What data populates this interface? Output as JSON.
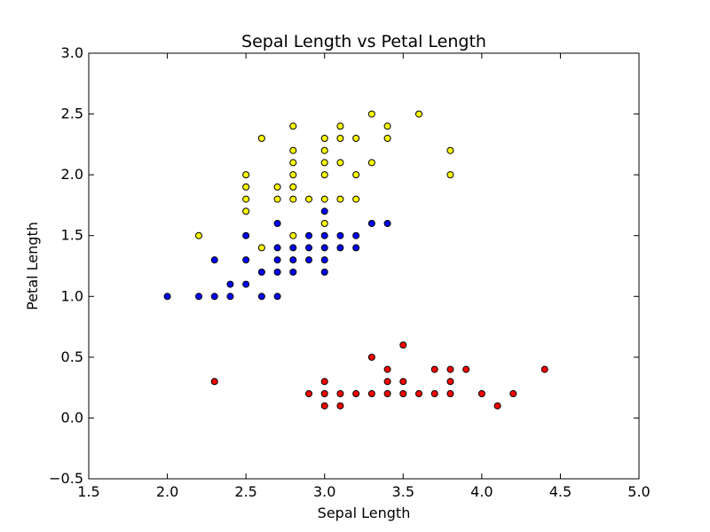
{
  "chart_data": {
    "type": "scatter",
    "title": "Sepal Length vs Petal Length",
    "xlabel": "Sepal Length",
    "ylabel": "Petal Length",
    "xlim": [
      1.5,
      5.0
    ],
    "ylim": [
      -0.5,
      3.0
    ],
    "xticks": [
      "1.5",
      "2.0",
      "2.5",
      "3.0",
      "3.5",
      "4.0",
      "4.5",
      "5.0"
    ],
    "yticks": [
      "−0.5",
      "0.0",
      "0.5",
      "1.0",
      "1.5",
      "2.0",
      "2.5",
      "3.0"
    ],
    "grid": false,
    "legend": "none",
    "series": [
      {
        "color": "#ff0000",
        "points": [
          [
            2.3,
            0.3
          ],
          [
            2.9,
            0.2
          ],
          [
            3.0,
            0.3
          ],
          [
            3.0,
            0.2
          ],
          [
            3.0,
            0.1
          ],
          [
            3.1,
            0.2
          ],
          [
            3.1,
            0.1
          ],
          [
            3.2,
            0.2
          ],
          [
            3.3,
            0.5
          ],
          [
            3.3,
            0.2
          ],
          [
            3.4,
            0.4
          ],
          [
            3.4,
            0.3
          ],
          [
            3.4,
            0.2
          ],
          [
            3.5,
            0.6
          ],
          [
            3.5,
            0.3
          ],
          [
            3.5,
            0.2
          ],
          [
            3.6,
            0.2
          ],
          [
            3.7,
            0.4
          ],
          [
            3.7,
            0.2
          ],
          [
            3.8,
            0.4
          ],
          [
            3.8,
            0.3
          ],
          [
            3.8,
            0.2
          ],
          [
            3.9,
            0.4
          ],
          [
            4.0,
            0.2
          ],
          [
            4.1,
            0.1
          ],
          [
            4.2,
            0.2
          ],
          [
            4.4,
            0.4
          ]
        ]
      },
      {
        "color": "#0000ff",
        "points": [
          [
            2.0,
            1.0
          ],
          [
            2.2,
            1.0
          ],
          [
            2.3,
            1.3
          ],
          [
            2.3,
            1.0
          ],
          [
            2.4,
            1.1
          ],
          [
            2.4,
            1.0
          ],
          [
            2.5,
            1.5
          ],
          [
            2.5,
            1.3
          ],
          [
            2.5,
            1.1
          ],
          [
            2.6,
            1.2
          ],
          [
            2.6,
            1.0
          ],
          [
            2.7,
            1.6
          ],
          [
            2.7,
            1.4
          ],
          [
            2.7,
            1.3
          ],
          [
            2.7,
            1.2
          ],
          [
            2.7,
            1.0
          ],
          [
            2.8,
            1.4
          ],
          [
            2.8,
            1.3
          ],
          [
            2.8,
            1.2
          ],
          [
            2.9,
            1.5
          ],
          [
            2.9,
            1.4
          ],
          [
            2.9,
            1.3
          ],
          [
            3.0,
            1.7
          ],
          [
            3.0,
            1.5
          ],
          [
            3.0,
            1.4
          ],
          [
            3.0,
            1.3
          ],
          [
            3.0,
            1.2
          ],
          [
            3.1,
            1.5
          ],
          [
            3.1,
            1.4
          ],
          [
            3.2,
            1.5
          ],
          [
            3.2,
            1.4
          ],
          [
            3.3,
            1.6
          ],
          [
            3.4,
            1.6
          ]
        ]
      },
      {
        "color": "#ffff00",
        "points": [
          [
            2.2,
            1.5
          ],
          [
            2.5,
            2.0
          ],
          [
            2.5,
            1.9
          ],
          [
            2.5,
            1.8
          ],
          [
            2.5,
            1.7
          ],
          [
            2.6,
            2.3
          ],
          [
            2.6,
            1.4
          ],
          [
            2.7,
            1.9
          ],
          [
            2.7,
            1.8
          ],
          [
            2.8,
            2.4
          ],
          [
            2.8,
            2.2
          ],
          [
            2.8,
            2.1
          ],
          [
            2.8,
            2.0
          ],
          [
            2.8,
            1.9
          ],
          [
            2.8,
            1.8
          ],
          [
            2.8,
            1.5
          ],
          [
            2.9,
            1.8
          ],
          [
            3.0,
            2.3
          ],
          [
            3.0,
            2.2
          ],
          [
            3.0,
            2.1
          ],
          [
            3.0,
            2.0
          ],
          [
            3.0,
            1.8
          ],
          [
            3.0,
            1.6
          ],
          [
            3.1,
            2.4
          ],
          [
            3.1,
            2.3
          ],
          [
            3.1,
            2.1
          ],
          [
            3.1,
            1.8
          ],
          [
            3.2,
            2.3
          ],
          [
            3.2,
            2.0
          ],
          [
            3.2,
            1.8
          ],
          [
            3.3,
            2.5
          ],
          [
            3.3,
            2.1
          ],
          [
            3.4,
            2.4
          ],
          [
            3.4,
            2.3
          ],
          [
            3.6,
            2.5
          ],
          [
            3.8,
            2.2
          ],
          [
            3.8,
            2.0
          ]
        ]
      }
    ]
  }
}
